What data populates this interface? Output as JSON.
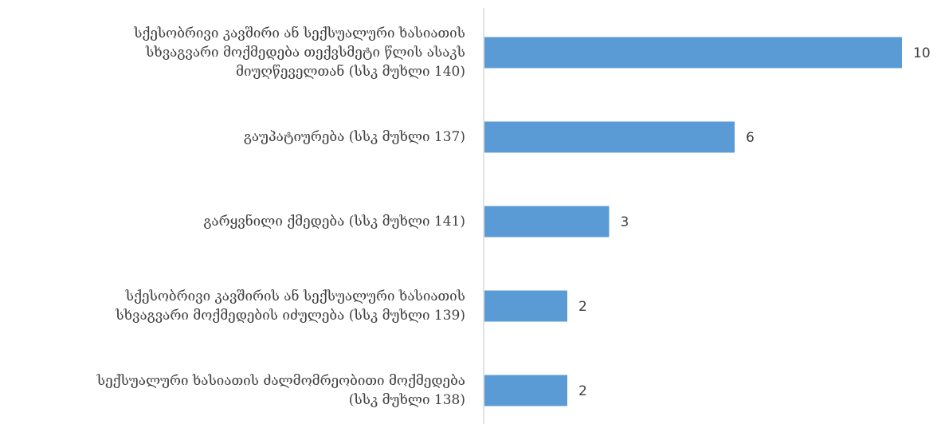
{
  "chart_data": {
    "type": "bar",
    "orientation": "horizontal",
    "categories": [
      "სქესობრივი კავშირი ან სექსუალური ხასიათის სხვაგვარი მოქმედება თექვსმეტი წლის ასაკს მიუღწეველთან (სსკ მუხლი 140)",
      "გაუპატიურება (სსკ მუხლი 137)",
      "გარყვნილი ქმედება (სსკ მუხლი 141)",
      "სქესობრივი კავშირის ან სექსუალური ხასიათის სხვაგვარი მოქმედების იძულება (სსკ  მუხლი 139)",
      "სექსუალური ხასიათის ძალმომრეობითი მოქმედება (სსკ მუხლი 138)"
    ],
    "display_lines": [
      [
        "სქესობრივი კავშირი ან სექსუალური ხასიათის",
        "სხვაგვარი მოქმედება თექვსმეტი წლის ასაკს",
        "მიუღწეველთან (სსკ მუხლი 140)"
      ],
      [
        "გაუპატიურება (სსკ მუხლი 137)"
      ],
      [
        "გარყვნილი ქმედება (სსკ მუხლი 141)"
      ],
      [
        "სქესობრივი კავშირის ან სექსუალური ხასიათის",
        "სხვაგვარი მოქმედების იძულება (სსკ  მუხლი 139)"
      ],
      [
        "სექსუალური ხასიათის ძალმომრეობითი მოქმედება",
        "(სსკ მუხლი 138)"
      ]
    ],
    "values": [
      10,
      6,
      3,
      2,
      2
    ],
    "data_labels": [
      "10",
      "6",
      "3",
      "2",
      "2"
    ],
    "xlim": [
      0,
      10
    ],
    "grid": false,
    "legend": "none",
    "bar_color": "#5B9BD5",
    "axis_color": "#D9D9D9",
    "text_color": "#404040"
  }
}
